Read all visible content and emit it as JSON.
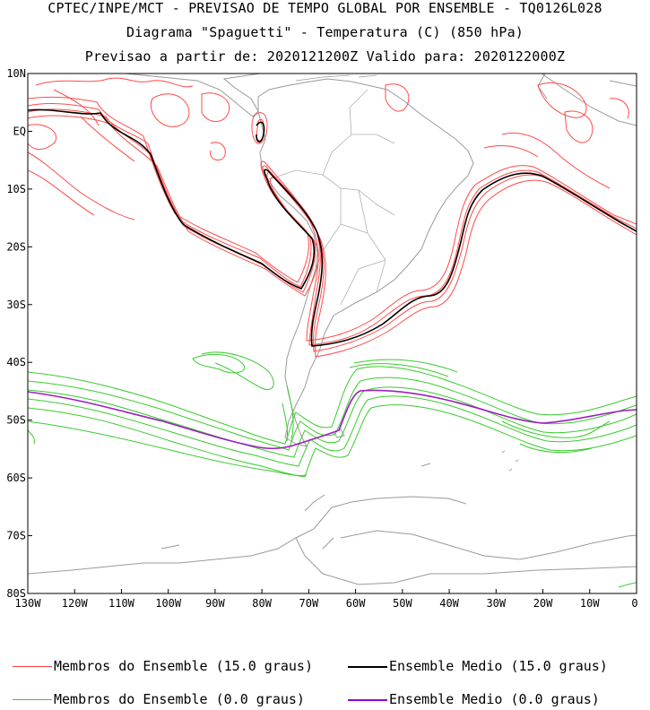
{
  "titles": {
    "line1": "CPTEC/INPE/MCT - PREVISAO DE TEMPO GLOBAL POR ENSEMBLE - TQ0126L028",
    "line2": "Diagrama \"Spaguetti\" - Temperatura (C) (850 hPa)",
    "line3": "Previsao a partir de: 2020121200Z  Valido para: 2020122000Z"
  },
  "map": {
    "lat_labels": [
      "10N",
      "EQ",
      "10S",
      "20S",
      "30S",
      "40S",
      "50S",
      "60S",
      "70S",
      "80S"
    ],
    "lon_labels": [
      "130W",
      "120W",
      "110W",
      "100W",
      "90W",
      "80W",
      "70W",
      "60W",
      "50W",
      "40W",
      "30W",
      "20W",
      "10W",
      "0"
    ],
    "lat_range": [
      -80,
      10
    ],
    "lon_range": [
      -130,
      0
    ]
  },
  "legend": [
    {
      "label": "Membros do Ensemble (15.0 graus)",
      "color": "#ff4040"
    },
    {
      "label": "Ensemble Medio (15.0 graus)",
      "color": "#000000"
    },
    {
      "label": "Membros do Ensemble (0.0 graus)",
      "color": "#33cc33"
    },
    {
      "label": "Ensemble Medio (0.0 graus)",
      "color": "#9900cc"
    }
  ],
  "colors": {
    "warm_members": "#ff4a4a",
    "warm_mean": "#000000",
    "cold_members": "#3acb2e",
    "cold_mean": "#9b1fc0",
    "coast": "#9a9a9a",
    "frame": "#000000"
  }
}
